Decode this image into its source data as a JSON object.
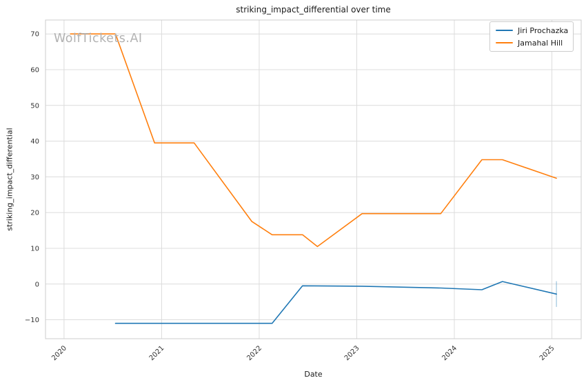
{
  "chart_data": {
    "type": "line",
    "title": "striking_impact_differential over time",
    "xlabel": "Date",
    "ylabel": "striking_impact_differential",
    "watermark": "WolfTickets.AI",
    "grid": true,
    "legend_position": "upper right",
    "x_ticks": [
      2020,
      2021,
      2022,
      2023,
      2024,
      2025
    ],
    "y_ticks": [
      -10,
      0,
      10,
      20,
      30,
      40,
      50,
      60,
      70
    ],
    "xlim": [
      2019.81,
      2025.3
    ],
    "ylim": [
      -15.3,
      73.9
    ],
    "series": [
      {
        "name": "Jiri Prochazka",
        "color": "#1f77b4",
        "x": [
          "2020-07-11",
          "2021-05-01",
          "2022-02-19",
          "2022-06-11",
          "2023-01-21",
          "2023-11-11",
          "2024-04-13",
          "2024-06-29",
          "2025-01-18"
        ],
        "y": [
          -11,
          -11,
          -11,
          -0.5,
          -0.6,
          -1.1,
          -1.6,
          0.7,
          -2.8
        ],
        "error_bar_last": {
          "high": 0.8,
          "low": -6.4
        }
      },
      {
        "name": "Jamahal Hill",
        "color": "#ff7f0e",
        "x": [
          "2020-01-25",
          "2020-07-11",
          "2020-12-05",
          "2021-05-01",
          "2021-12-04",
          "2022-02-19",
          "2022-06-11",
          "2022-08-06",
          "2023-01-21",
          "2023-11-11",
          "2024-04-13",
          "2024-06-29",
          "2025-01-18"
        ],
        "y": [
          70,
          70,
          39.5,
          39.5,
          17.5,
          13.8,
          13.8,
          10.5,
          19.7,
          19.7,
          34.8,
          34.8,
          29.6
        ]
      }
    ]
  },
  "colors": {
    "grid": "#dcdcdc",
    "spine": "#cccccc",
    "tick_text": "#333333",
    "text": "#1a1a1a",
    "watermark": "#b2b2b2"
  }
}
